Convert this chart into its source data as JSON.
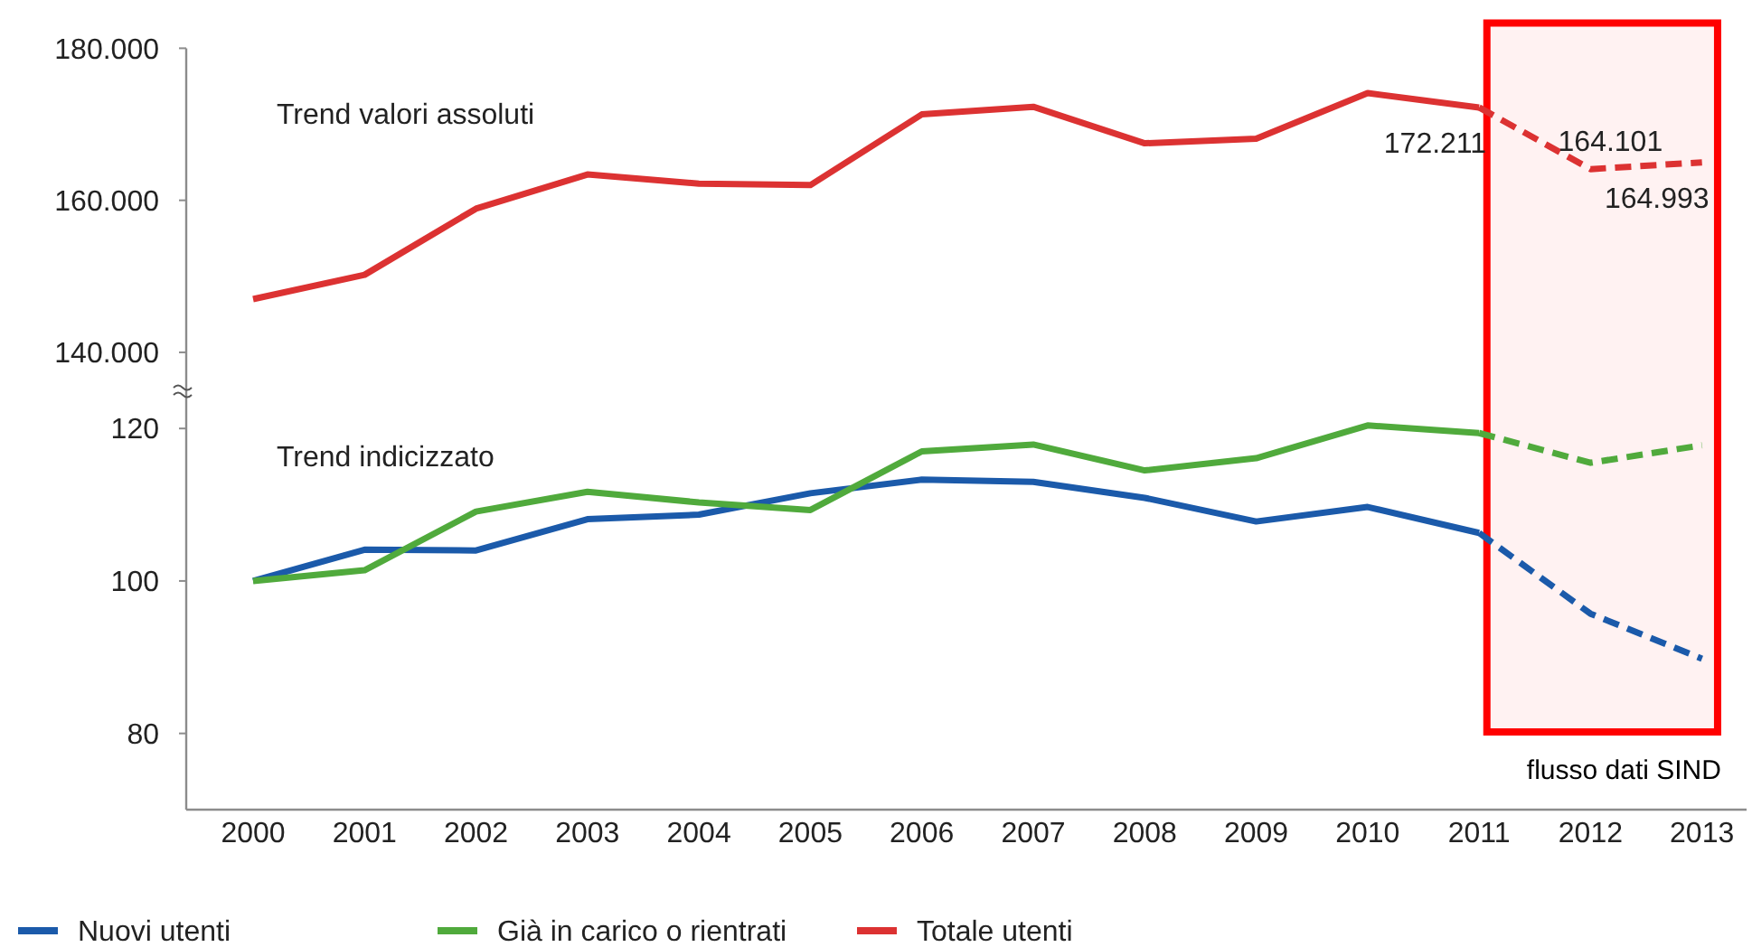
{
  "chart_data": [
    {
      "type": "line",
      "x": [
        2000,
        2001,
        2002,
        2003,
        2004,
        2005,
        2006,
        2007,
        2008,
        2009,
        2010,
        2011,
        2012,
        2013
      ],
      "xlim": [
        1999.4,
        2013.4
      ],
      "ylim": [
        135000,
        180000
      ],
      "yticks": [
        {
          "value": 140000,
          "label": "140.000"
        },
        {
          "value": 160000,
          "label": "160.000"
        },
        {
          "value": 180000,
          "label": "180.000"
        }
      ],
      "tick_labels": "y",
      "legend": "bottom",
      "annotations": [
        "Trend valori assoluti"
      ],
      "bands": [
        {
          "axis": "x",
          "from": 2011.07,
          "to": 2013.14,
          "color": "#ff0000"
        }
      ],
      "series": [
        {
          "name": "Totale utenti",
          "color": "#dc3232",
          "values": [
            147000,
            150200,
            158900,
            163400,
            162200,
            162000,
            171300,
            172300,
            167500,
            168100,
            174100,
            172211,
            null,
            null
          ],
          "value_labels": [
            null,
            null,
            null,
            null,
            null,
            null,
            null,
            null,
            null,
            null,
            null,
            "172.211",
            null,
            null
          ]
        },
        {
          "color": "#dc3232",
          "line_style": "dashed",
          "values": [
            null,
            null,
            null,
            null,
            null,
            null,
            null,
            null,
            null,
            null,
            null,
            172211,
            164101,
            164993
          ],
          "value_labels": [
            null,
            null,
            null,
            null,
            null,
            null,
            null,
            null,
            null,
            null,
            null,
            null,
            "164.101",
            "164.993"
          ]
        }
      ]
    },
    {
      "type": "line",
      "x": [
        2000,
        2001,
        2002,
        2003,
        2004,
        2005,
        2006,
        2007,
        2008,
        2009,
        2010,
        2011,
        2012,
        2013
      ],
      "xlim": [
        1999.4,
        2013.4
      ],
      "xticks": [
        2000,
        2001,
        2002,
        2003,
        2004,
        2005,
        2006,
        2007,
        2008,
        2009,
        2010,
        2011,
        2012,
        2013
      ],
      "ylim": [
        70,
        125
      ],
      "yticks": [
        80,
        100,
        120
      ],
      "legend": "bottom",
      "annotations": [
        "Trend indicizzato"
      ],
      "bands": [
        {
          "axis": "x",
          "from": 2011.07,
          "to": 2013.14,
          "label": "flusso dati SIND",
          "color": "#ff0000"
        }
      ],
      "series": [
        {
          "name": "Nuovi utenti",
          "color": "#1b5aaa",
          "values": [
            100,
            104.1,
            104.0,
            108.1,
            108.7,
            111.5,
            113.3,
            113.0,
            110.9,
            107.8,
            109.7,
            106.3,
            null,
            null
          ]
        },
        {
          "name": "Già in carico o rientrati",
          "color": "#50aa3c",
          "values": [
            100,
            101.4,
            109.1,
            111.7,
            110.3,
            109.3,
            117.0,
            117.9,
            114.5,
            116.1,
            120.4,
            119.4,
            null,
            null
          ]
        },
        {
          "color": "#1b5aaa",
          "line_style": "dashed",
          "values": [
            null,
            null,
            null,
            null,
            null,
            null,
            null,
            null,
            null,
            null,
            null,
            106.3,
            95.7,
            89.8
          ]
        },
        {
          "color": "#50aa3c",
          "line_style": "dashed",
          "values": [
            null,
            null,
            null,
            null,
            null,
            null,
            null,
            null,
            null,
            null,
            null,
            119.4,
            115.5,
            117.8
          ]
        }
      ]
    }
  ]
}
